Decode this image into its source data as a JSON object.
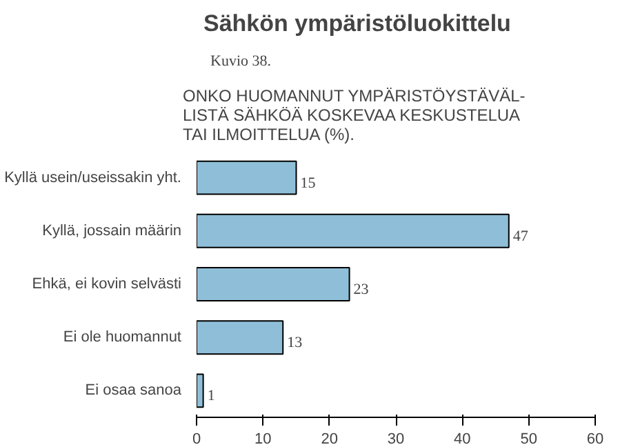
{
  "chart_data": {
    "type": "bar",
    "orientation": "horizontal",
    "title": "Sähkön ympäristöluokittelu",
    "subtitle": "ONKO HUOMANNUT YMPÄRISTÖYSTÄVÄL-\nLISTÄ SÄHKÖÄ KOSKEVAA KESKUSTELUA\nTAI ILMOITTELUA (%).",
    "annotations": [
      "Kuvio 38."
    ],
    "categories": [
      "Kyllä usein/useissakin yht.",
      "Kyllä, jossain määrin",
      "Ehkä, ei kovin selvästi",
      "Ei ole huomannut",
      "Ei osaa sanoa"
    ],
    "values": [
      15,
      47,
      23,
      13,
      1
    ],
    "color": "#8fbfd8",
    "data_labels": true,
    "xlim": [
      0,
      60
    ],
    "xticks": [
      0,
      10,
      20,
      30,
      40,
      50,
      60
    ],
    "grid": false
  }
}
